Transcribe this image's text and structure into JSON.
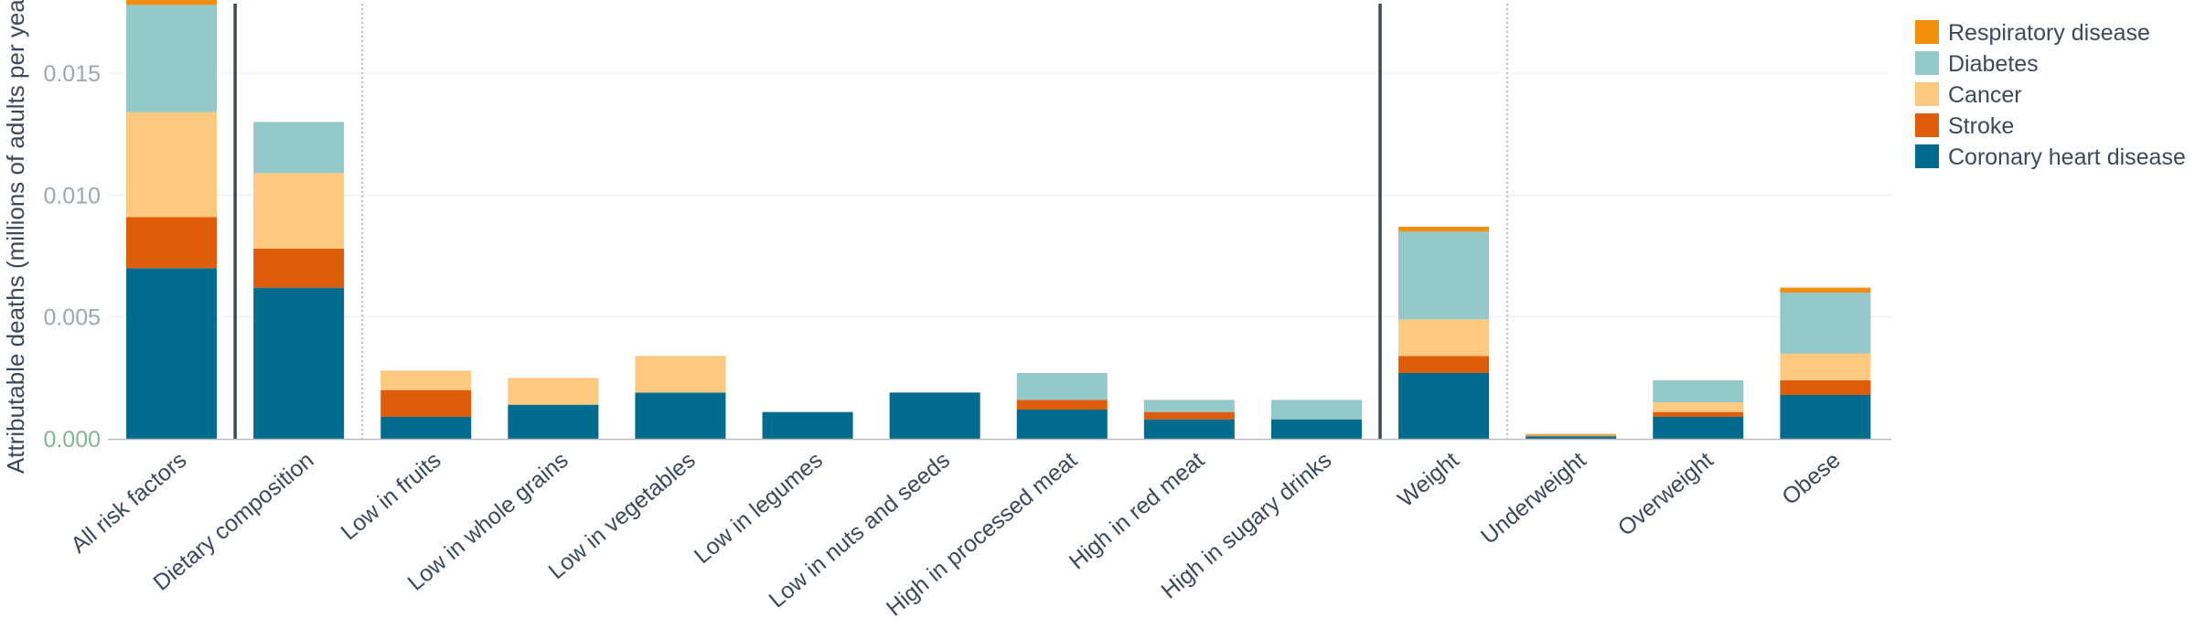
{
  "chart_data": {
    "type": "bar",
    "stacked": true,
    "title": "",
    "xlabel": "",
    "ylabel": "Attributable deaths (millions of adults per year)",
    "ylim": [
      0,
      0.018
    ],
    "yticks": [
      "0.000",
      "0.005",
      "0.010",
      "0.015"
    ],
    "ytick_values": [
      0,
      0.005,
      0.01,
      0.015
    ],
    "grid": true,
    "legend_position": "top-right",
    "categories": [
      "All risk factors",
      "Dietary composition",
      "Low in fruits",
      "Low in whole grains",
      "Low in vegetables",
      "Low in legumes",
      "Low in nuts and seeds",
      "High in processed meat",
      "High in red meat",
      "High in sugary drinks",
      "Weight",
      "Underweight",
      "Overweight",
      "Obese"
    ],
    "separators": [
      {
        "after_index": 0,
        "style": "solid"
      },
      {
        "after_index": 1,
        "style": "dotted"
      },
      {
        "after_index": 9,
        "style": "solid"
      },
      {
        "after_index": 10,
        "style": "dotted"
      }
    ],
    "series": [
      {
        "name": "Coronary heart disease",
        "color": "#016c8e",
        "values": [
          0.007,
          0.0062,
          0.0009,
          0.0014,
          0.0019,
          0.0011,
          0.0019,
          0.0012,
          0.0008,
          0.0008,
          0.0027,
          0.0001,
          0.0009,
          0.0018
        ]
      },
      {
        "name": "Stroke",
        "color": "#de5d0b",
        "values": [
          0.0021,
          0.0016,
          0.0011,
          0.0,
          0.0,
          0.0,
          0.0,
          0.0004,
          0.0003,
          0.0,
          0.0007,
          3e-05,
          0.0002,
          0.0006
        ]
      },
      {
        "name": "Cancer",
        "color": "#fcc97f",
        "values": [
          0.0043,
          0.0031,
          0.0008,
          0.0011,
          0.0015,
          0.0,
          0.0,
          0.0,
          0.0,
          0.0,
          0.0015,
          2e-05,
          0.0004,
          0.0011
        ]
      },
      {
        "name": "Diabetes",
        "color": "#95c8c8",
        "values": [
          0.0044,
          0.0021,
          0.0,
          0.0,
          0.0,
          0.0,
          0.0,
          0.0011,
          0.0005,
          0.0008,
          0.0036,
          2e-05,
          0.0009,
          0.0025
        ]
      },
      {
        "name": "Respiratory disease",
        "color": "#f18f0c",
        "values": [
          0.0002,
          0.0,
          0.0,
          0.0,
          0.0,
          0.0,
          0.0,
          0.0,
          0.0,
          0.0,
          0.0002,
          3e-05,
          0.0,
          0.0002
        ]
      }
    ],
    "legend_order": [
      "Respiratory disease",
      "Diabetes",
      "Cancer",
      "Stroke",
      "Coronary heart disease"
    ],
    "colors": {
      "tick_first": "#7fb69a",
      "tick": "#9aa8b6",
      "text": "#3a4a5c",
      "grid": "#ececec",
      "axis": "#b8bec6",
      "separator": "#3d4a5a",
      "separator_dotted": "#b5bac4"
    }
  }
}
